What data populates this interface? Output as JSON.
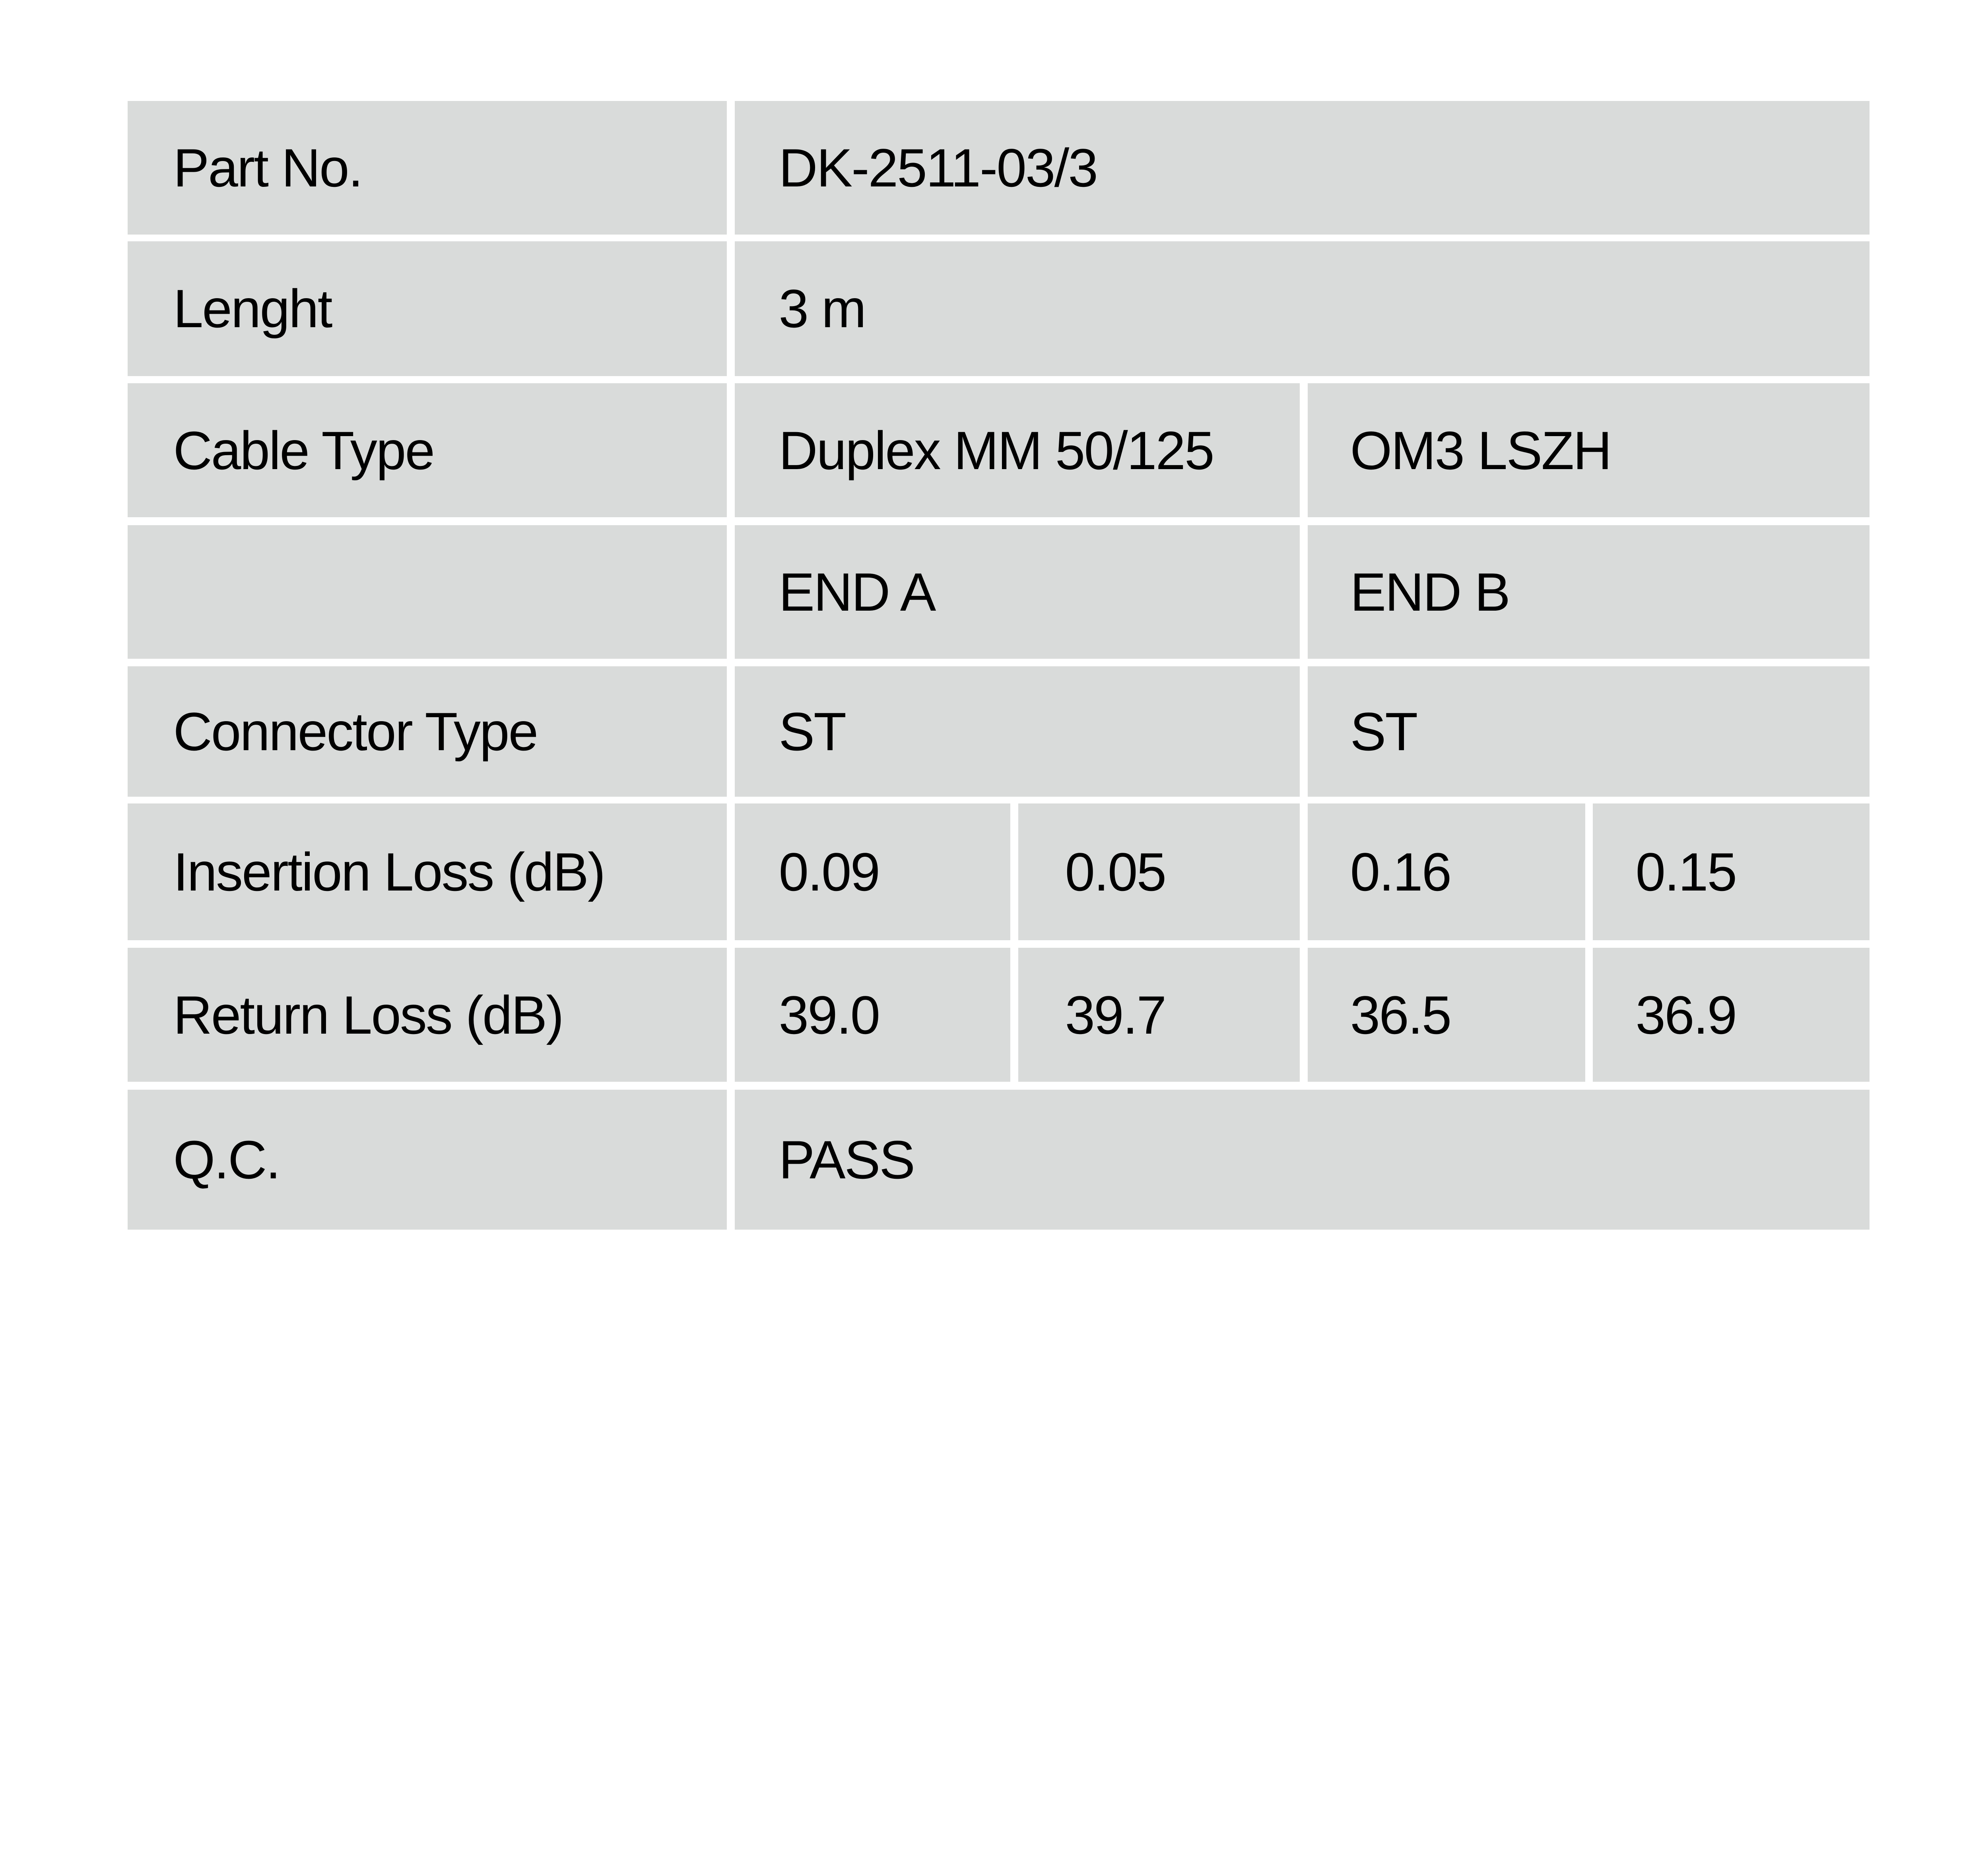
{
  "table": {
    "part_no": {
      "label": "Part No.",
      "value": "DK-2511-03/3"
    },
    "length": {
      "label": "Lenght",
      "value": "3 m"
    },
    "cable_type": {
      "label": "Cable Type",
      "values": [
        "Duplex MM 50/125",
        "OM3 LSZH"
      ]
    },
    "ends": {
      "label": "",
      "values": [
        "END A",
        "END B"
      ]
    },
    "connector_type": {
      "label": "Connector Type",
      "values": [
        "ST",
        "ST"
      ]
    },
    "insertion_loss": {
      "label": "Insertion Loss (dB)",
      "values": [
        "0.09",
        "0.05",
        "0.16",
        "0.15"
      ]
    },
    "return_loss": {
      "label": "Return Loss (dB)",
      "values": [
        "39.0",
        "39.7",
        "36.5",
        "36.9"
      ]
    },
    "qc": {
      "label": "Q.C.",
      "value": "PASS"
    }
  },
  "colors": {
    "cell_background": "#d9dbda",
    "grid_lines": "#ffffff",
    "text": "#000000"
  }
}
